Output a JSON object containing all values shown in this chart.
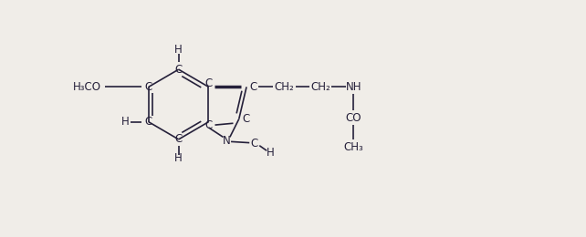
{
  "bg_color": "#f0ede8",
  "text_color": "#25203a",
  "line_color": "#25203a",
  "font_size": 8.5,
  "fig_width": 6.42,
  "fig_height": 2.6,
  "dpi": 100,
  "xlim": [
    0,
    10.5
  ],
  "ylim": [
    0,
    4.2
  ]
}
